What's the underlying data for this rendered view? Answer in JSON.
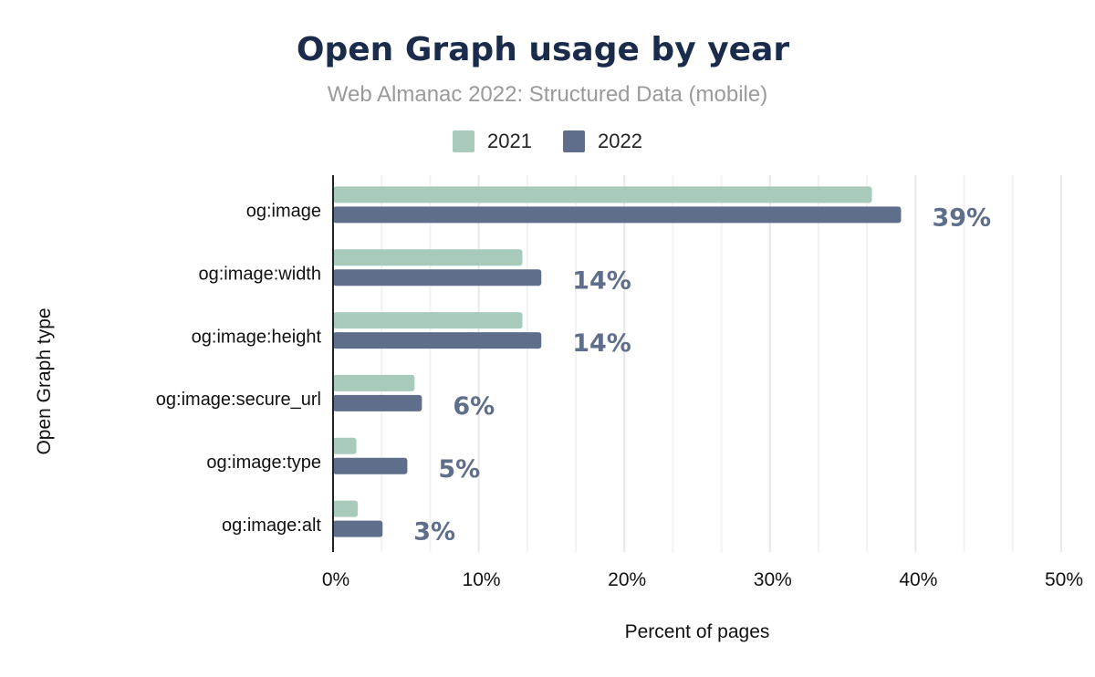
{
  "chart_data": {
    "type": "bar",
    "orientation": "horizontal",
    "title": "Open Graph usage by year",
    "subtitle": "Web Almanac 2022: Structured Data (mobile)",
    "xlabel": "Percent of pages",
    "ylabel": "Open Graph type",
    "xlim": [
      0,
      50
    ],
    "xticks": [
      "0%",
      "10%",
      "20%",
      "30%",
      "40%",
      "50%"
    ],
    "grid": true,
    "legend_position": "top",
    "categories": [
      "og:image",
      "og:image:width",
      "og:image:height",
      "og:image:secure_url",
      "og:image:type",
      "og:image:alt"
    ],
    "series": [
      {
        "name": "2021",
        "color": "#a8cabb",
        "values": [
          37.0,
          13.0,
          13.0,
          5.6,
          1.6,
          1.7
        ]
      },
      {
        "name": "2022",
        "color": "#5f6f8b",
        "values": [
          39.0,
          14.3,
          14.3,
          6.1,
          5.1,
          3.4
        ]
      }
    ],
    "data_labels": [
      "39%",
      "14%",
      "14%",
      "6%",
      "5%",
      "3%"
    ]
  }
}
